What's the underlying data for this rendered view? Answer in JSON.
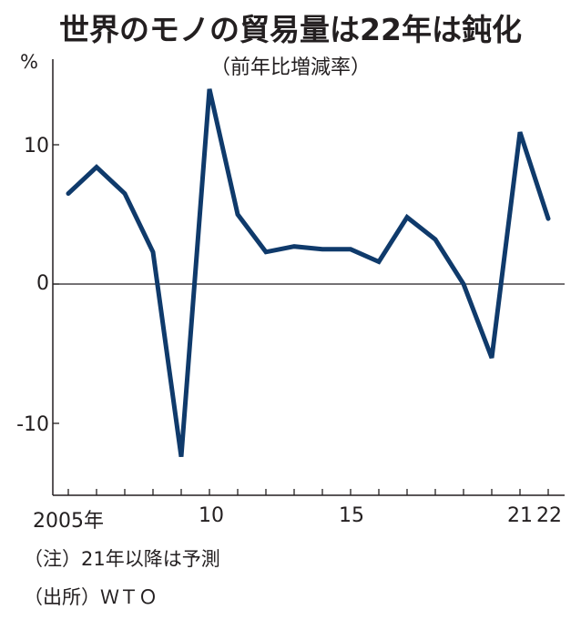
{
  "header": {
    "title": "世界のモノの貿易量は22年は鈍化",
    "subtitle": "（前年比増減率）",
    "unit": "%"
  },
  "axis": {
    "y_ticks": [
      "10",
      "0",
      "-10"
    ],
    "x_labels": [
      "2005年",
      "10",
      "15",
      "21",
      "22"
    ]
  },
  "footer": {
    "note": "（注）21年以降は予測",
    "source": "（出所）ＷＴＯ"
  },
  "colors": {
    "line": "#0f3a6b",
    "axis": "#231f20"
  },
  "chart_data": {
    "type": "line",
    "title": "世界のモノの貿易量は22年は鈍化",
    "subtitle": "（前年比増減率）",
    "xlabel": "",
    "ylabel": "%",
    "x": [
      2005,
      2006,
      2007,
      2008,
      2009,
      2010,
      2011,
      2012,
      2013,
      2014,
      2015,
      2016,
      2017,
      2018,
      2019,
      2020,
      2021,
      2022
    ],
    "series": [
      {
        "name": "世界のモノの貿易量 前年比増減率",
        "values": [
          6.5,
          8.4,
          6.5,
          2.3,
          -12.4,
          14.0,
          5.0,
          2.3,
          2.7,
          2.5,
          2.5,
          1.6,
          4.8,
          3.2,
          0.0,
          -5.3,
          10.9,
          4.7
        ]
      }
    ],
    "ylim": [
      -15,
      15
    ],
    "y_ticks": [
      10,
      0,
      -10
    ],
    "x_tick_labels": [
      "2005年",
      "10",
      "15",
      "21",
      "22"
    ],
    "grid": false,
    "legend": null,
    "annotations": [
      "（注）21年以降は予測",
      "（出所）ＷＴＯ"
    ]
  }
}
